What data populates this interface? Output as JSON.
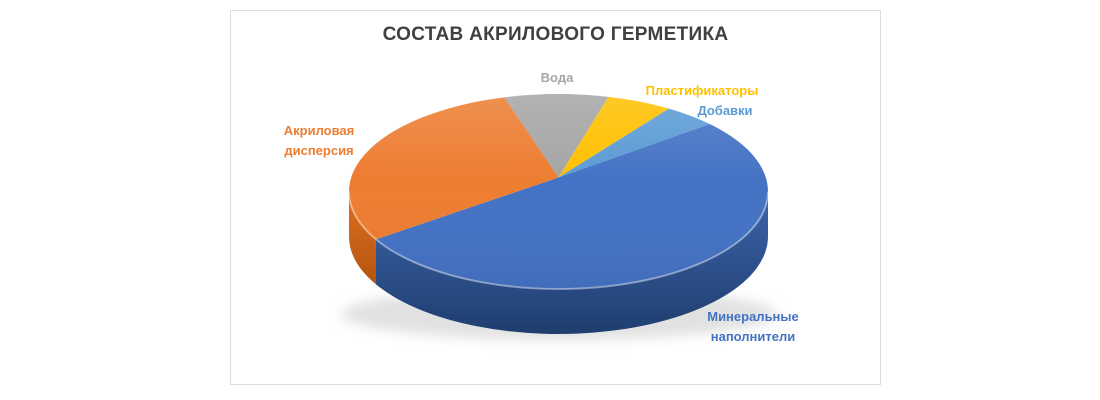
{
  "page": {
    "background": "#ffffff"
  },
  "chart": {
    "title": {
      "text": "СОСТАВ АКРИЛОВОГО ГЕРМЕТИКА",
      "color": "#404040"
    },
    "callouts": {
      "water": {
        "line1": "Вода",
        "line2": "",
        "color": "#A6A6A6"
      },
      "plasticizers": {
        "line1": "Пластификаторы",
        "line2": "",
        "color": "#FFC000"
      },
      "additives": {
        "line1": "Добавки",
        "line2": "",
        "color": "#5B9BD5"
      },
      "acrylic": {
        "line1": "Акриловая",
        "line2": "дисперсия",
        "color": "#ED7D31"
      },
      "mineral": {
        "line1": "Минеральные",
        "line2": "наполнители",
        "color": "#4472C4"
      }
    }
  },
  "chart_data": {
    "type": "pie",
    "projection": "3d",
    "title": "СОСТАВ АКРИЛОВОГО ГЕРМЕТИКА",
    "unit": "percent (estimated from slice angles)",
    "start_angle_deg": -105,
    "clockwise": true,
    "legend": "none",
    "data_labels": "category names only, colored to match slices",
    "slices": [
      {
        "id": "water",
        "label": "Вода",
        "value": 8,
        "color": "#A5A5A5",
        "side": [
          "#9C9C9C",
          "#787878"
        ]
      },
      {
        "id": "plasticizers",
        "label": "Пластификаторы",
        "value": 5,
        "color": "#FFC000",
        "side": [
          "#E3A600",
          "#B98700"
        ]
      },
      {
        "id": "additives",
        "label": "Добавки",
        "value": 4,
        "color": "#5B9BD5",
        "side": [
          "#4A88C0",
          "#33669B"
        ]
      },
      {
        "id": "mineral-fillers",
        "label": "Минеральные наполнители",
        "value": 54,
        "color": "#4472C4",
        "side": [
          "#3D65AC",
          "#1F3E6F"
        ]
      },
      {
        "id": "acrylic-dispersion",
        "label": "Акриловая дисперсия",
        "value": 29,
        "color": "#ED7D31",
        "side": [
          "#E0701F",
          "#B35410"
        ]
      }
    ]
  }
}
